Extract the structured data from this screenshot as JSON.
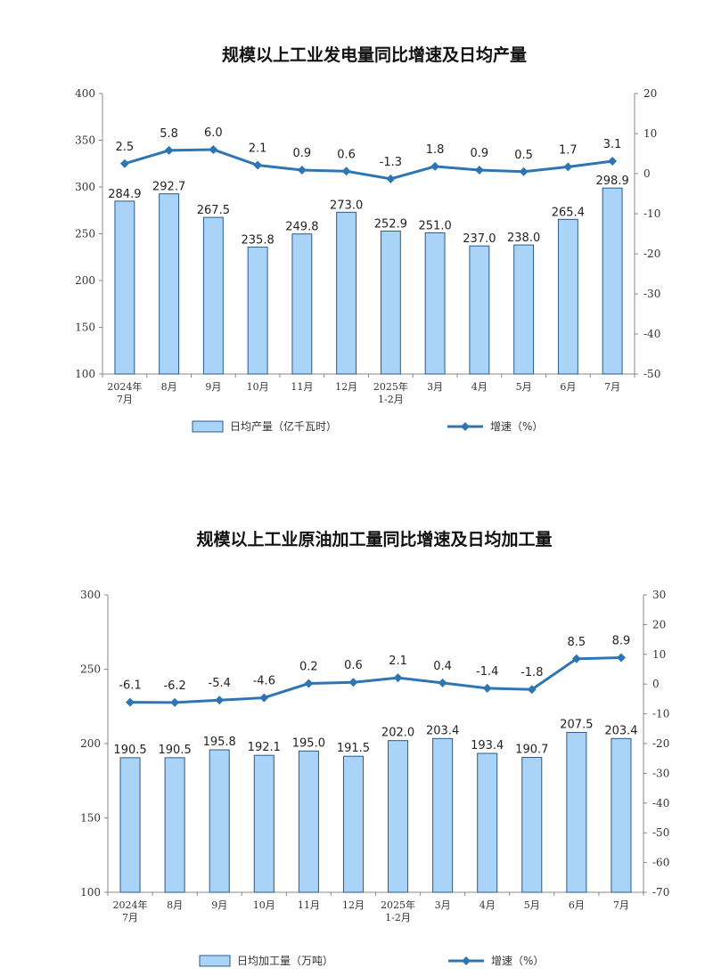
{
  "chart_data": [
    {
      "type": "bar+line",
      "title": "规模以上工业发电量同比增速及日均产量",
      "categories": [
        [
          "2024年",
          "7月"
        ],
        [
          "8月"
        ],
        [
          "9月"
        ],
        [
          "10月"
        ],
        [
          "11月"
        ],
        [
          "12月"
        ],
        [
          "2025年",
          "1-2月"
        ],
        [
          "3月"
        ],
        [
          "4月"
        ],
        [
          "5月"
        ],
        [
          "6月"
        ],
        [
          "7月"
        ]
      ],
      "bar_series": {
        "name": "日均产量（亿千瓦时）",
        "values": [
          284.9,
          292.7,
          267.5,
          235.8,
          249.8,
          273.0,
          252.9,
          251.0,
          237.0,
          238.0,
          265.4,
          298.9
        ]
      },
      "line_series": {
        "name": "增速（%）",
        "values": [
          2.5,
          5.8,
          6.0,
          2.1,
          0.9,
          0.6,
          -1.3,
          1.8,
          0.9,
          0.5,
          1.7,
          3.1
        ]
      },
      "left_ylim": [
        100,
        400
      ],
      "left_ticks": [
        100,
        150,
        200,
        250,
        300,
        350,
        400
      ],
      "right_ylim": [
        -50,
        20
      ],
      "right_ticks": [
        -50,
        -40,
        -30,
        -20,
        -10,
        0,
        10,
        20
      ],
      "grid": false,
      "legend_position": "bottom",
      "colors": {
        "bar_fill": "#a9d3f7",
        "bar_stroke": "#2a5a8a",
        "line": "#2e75b6"
      }
    },
    {
      "type": "bar+line",
      "title": "规模以上工业原油加工量同比增速及日均加工量",
      "categories": [
        [
          "2024年",
          "7月"
        ],
        [
          "8月"
        ],
        [
          "9月"
        ],
        [
          "10月"
        ],
        [
          "11月"
        ],
        [
          "12月"
        ],
        [
          "2025年",
          "1-2月"
        ],
        [
          "3月"
        ],
        [
          "4月"
        ],
        [
          "5月"
        ],
        [
          "6月"
        ],
        [
          "7月"
        ]
      ],
      "bar_series": {
        "name": "日均加工量（万吨）",
        "values": [
          190.5,
          190.5,
          195.8,
          192.1,
          195.0,
          191.5,
          202.0,
          203.4,
          193.4,
          190.7,
          207.5,
          203.4
        ]
      },
      "line_series": {
        "name": "增速（%）",
        "values": [
          -6.1,
          -6.2,
          -5.4,
          -4.6,
          0.2,
          0.6,
          2.1,
          0.4,
          -1.4,
          -1.8,
          8.5,
          8.9
        ]
      },
      "left_ylim": [
        100,
        300
      ],
      "left_ticks": [
        100,
        150,
        200,
        250,
        300
      ],
      "right_ylim": [
        -70,
        30
      ],
      "right_ticks": [
        -70,
        -60,
        -50,
        -40,
        -30,
        -20,
        -10,
        0,
        10,
        20,
        30
      ],
      "grid": false,
      "legend_position": "bottom",
      "colors": {
        "bar_fill": "#a9d3f7",
        "bar_stroke": "#2a5a8a",
        "line": "#2e75b6"
      }
    }
  ]
}
